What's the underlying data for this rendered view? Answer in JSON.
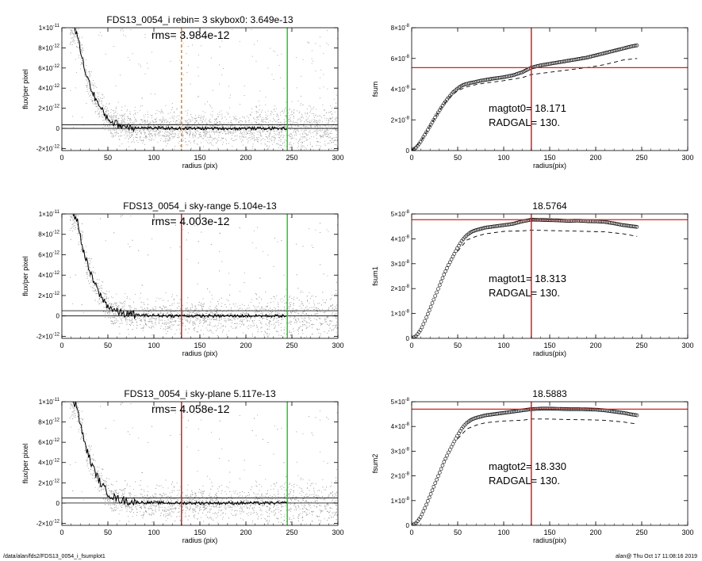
{
  "footer": {
    "path": "/data/alan/fds2/FDS13_0054_i_fsumplot1",
    "stamp": "alan@  Thu Oct 17 11:08:16 2019"
  },
  "colors": {
    "axis": "#000000",
    "scatter": "#9a9a9a",
    "profile": "#000000",
    "marker_red": "#d62020",
    "marker_green": "#22cc22",
    "marker_orange": "#e8821e"
  },
  "chart_data": [
    {
      "type": "scatter",
      "panel": "left-1",
      "title": "FDS13_0054_i rebin= 3     skybox0:  3.649e-13",
      "annotation": "rms= 3.984e-12",
      "xlabel": "radius (pix)",
      "ylabel": "flux/per pixel",
      "xlim": [
        0,
        300
      ],
      "ylim": [
        -2.2e-12,
        1e-11
      ],
      "xticks": [
        "0",
        "50",
        "100",
        "150",
        "200",
        "250",
        "300"
      ],
      "yticks": [
        {
          "v": -2e-12,
          "m": "-2×10",
          "e": "-12"
        },
        {
          "v": 0,
          "m": "0",
          "e": ""
        },
        {
          "v": 2e-12,
          "m": "2×10",
          "e": "-12"
        },
        {
          "v": 4e-12,
          "m": "4×10",
          "e": "-12"
        },
        {
          "v": 6e-12,
          "m": "6×10",
          "e": "-12"
        },
        {
          "v": 8e-12,
          "m": "8×10",
          "e": "-12"
        },
        {
          "v": 1e-11,
          "m": "1×10",
          "e": "-11"
        }
      ],
      "profile": {
        "r": [
          12,
          16,
          20,
          24,
          28,
          32,
          36,
          40,
          44,
          48,
          52,
          56,
          60,
          64,
          68,
          72,
          76,
          80,
          90,
          100,
          110,
          120,
          130,
          140,
          150,
          160,
          170,
          180,
          190,
          200,
          210,
          220,
          230,
          245
        ],
        "flux": [
          1e-11,
          9.6e-12,
          7.8e-12,
          6.2e-12,
          5e-12,
          3.9e-12,
          3.1e-12,
          2.3e-12,
          1.7e-12,
          1.2e-12,
          8.5e-13,
          6e-13,
          4.2e-13,
          3e-13,
          2.2e-13,
          1.6e-13,
          1.2e-13,
          1e-13,
          6e-14,
          4e-14,
          2e-14,
          1e-14,
          5e-15,
          0,
          -5e-15,
          5e-15,
          0,
          -5e-15,
          0,
          5e-15,
          0,
          -5e-15,
          0,
          0
        ]
      },
      "hlines": [
        0,
        3.649e-13
      ],
      "vlines": [
        {
          "x": 130,
          "color": "#e8821e",
          "style": "dashed"
        },
        {
          "x": 245,
          "color": "#22cc22",
          "style": "solid"
        }
      ]
    },
    {
      "type": "line",
      "panel": "right-1",
      "title": "",
      "annotation": [
        "magtot0=  18.171",
        "RADGAL=     130."
      ],
      "xlabel": "radius(pix)",
      "ylabel": "fsum",
      "xlim": [
        0,
        300
      ],
      "ylim": [
        0,
        8e-08
      ],
      "xticks": [
        "0",
        "50",
        "100",
        "150",
        "200",
        "250",
        "300"
      ],
      "yticks": [
        {
          "v": 0,
          "m": "0",
          "e": ""
        },
        {
          "v": 2e-08,
          "m": "2×10",
          "e": "-8"
        },
        {
          "v": 4e-08,
          "m": "4×10",
          "e": "-8"
        },
        {
          "v": 6e-08,
          "m": "6×10",
          "e": "-8"
        },
        {
          "v": 8e-08,
          "m": "8×10",
          "e": "-8"
        }
      ],
      "fsum": {
        "r": [
          0,
          5,
          10,
          15,
          20,
          25,
          30,
          35,
          40,
          45,
          50,
          55,
          60,
          65,
          70,
          75,
          80,
          90,
          100,
          110,
          120,
          130,
          140,
          150,
          160,
          170,
          180,
          190,
          200,
          210,
          220,
          230,
          240,
          245
        ],
        "value": [
          0,
          2e-09,
          6e-09,
          1.1e-08,
          1.6e-08,
          2.1e-08,
          2.6e-08,
          3.05e-08,
          3.45e-08,
          3.8e-08,
          4.05e-08,
          4.25e-08,
          4.35e-08,
          4.42e-08,
          4.48e-08,
          4.55e-08,
          4.6e-08,
          4.7e-08,
          4.78e-08,
          4.9e-08,
          5.1e-08,
          5.4e-08,
          5.55e-08,
          5.65e-08,
          5.75e-08,
          5.85e-08,
          5.95e-08,
          6.05e-08,
          6.2e-08,
          6.35e-08,
          6.5e-08,
          6.65e-08,
          6.8e-08,
          6.85e-08
        ]
      },
      "dashed": {
        "r": [
          0,
          10,
          20,
          30,
          40,
          50,
          60,
          70,
          80,
          100,
          120,
          130,
          150,
          170,
          190,
          210,
          230,
          245
        ],
        "value": [
          0,
          6e-09,
          1.6e-08,
          2.6e-08,
          3.4e-08,
          3.9e-08,
          4.15e-08,
          4.3e-08,
          4.4e-08,
          4.55e-08,
          4.75e-08,
          4.95e-08,
          5.1e-08,
          5.25e-08,
          5.4e-08,
          5.6e-08,
          5.9e-08,
          6e-08
        ]
      },
      "hline": 5.4e-08,
      "vline": 130
    },
    {
      "type": "scatter",
      "panel": "left-2",
      "title": "FDS13_0054_i sky-range  5.104e-13",
      "annotation": "rms= 4.003e-12",
      "xlabel": "radius (pix)",
      "ylabel": "flux/per pixel",
      "xlim": [
        0,
        300
      ],
      "ylim": [
        -2.2e-12,
        1e-11
      ],
      "xticks": [
        "0",
        "50",
        "100",
        "150",
        "200",
        "250",
        "300"
      ],
      "yticks": [
        {
          "v": -2e-12,
          "m": "-2×10",
          "e": "-12"
        },
        {
          "v": 0,
          "m": "0",
          "e": ""
        },
        {
          "v": 2e-12,
          "m": "2×10",
          "e": "-12"
        },
        {
          "v": 4e-12,
          "m": "4×10",
          "e": "-12"
        },
        {
          "v": 6e-12,
          "m": "6×10",
          "e": "-12"
        },
        {
          "v": 8e-12,
          "m": "8×10",
          "e": "-12"
        },
        {
          "v": 1e-11,
          "m": "1×10",
          "e": "-11"
        }
      ],
      "profile": {
        "r": [
          12,
          16,
          20,
          24,
          28,
          32,
          36,
          40,
          44,
          48,
          52,
          56,
          60,
          64,
          68,
          72,
          76,
          80,
          90,
          100,
          110,
          120,
          130,
          140,
          150,
          160,
          170,
          180,
          190,
          200,
          210,
          220,
          230,
          245
        ],
        "flux": [
          1e-11,
          9.6e-12,
          7.8e-12,
          6.2e-12,
          5e-12,
          3.9e-12,
          3.1e-12,
          2.3e-12,
          1.7e-12,
          1.2e-12,
          8.5e-13,
          6e-13,
          4.2e-13,
          3e-13,
          2.2e-13,
          1.6e-13,
          1.2e-13,
          1e-13,
          6e-14,
          4e-14,
          2e-14,
          1e-14,
          5e-15,
          0,
          -5e-15,
          5e-15,
          0,
          -5e-15,
          0,
          5e-15,
          0,
          -5e-15,
          0,
          0
        ]
      },
      "hlines": [
        0,
        5.104e-13
      ],
      "vlines": [
        {
          "x": 130,
          "color": "#d62020",
          "style": "solid"
        },
        {
          "x": 245,
          "color": "#22cc22",
          "style": "solid"
        }
      ]
    },
    {
      "type": "line",
      "panel": "right-2",
      "title": "18.5764",
      "annotation": [
        "magtot1=  18.313",
        "RADGAL=     130."
      ],
      "xlabel": "radius(pix)",
      "ylabel": "fsum1",
      "xlim": [
        0,
        300
      ],
      "ylim": [
        0,
        5e-08
      ],
      "xticks": [
        "0",
        "50",
        "100",
        "150",
        "200",
        "250",
        "300"
      ],
      "yticks": [
        {
          "v": 0,
          "m": "0",
          "e": ""
        },
        {
          "v": 1e-08,
          "m": "1×10",
          "e": "-8"
        },
        {
          "v": 2e-08,
          "m": "2×10",
          "e": "-8"
        },
        {
          "v": 3e-08,
          "m": "3×10",
          "e": "-8"
        },
        {
          "v": 4e-08,
          "m": "4×10",
          "e": "-8"
        },
        {
          "v": 5e-08,
          "m": "5×10",
          "e": "-8"
        }
      ],
      "fsum": {
        "r": [
          0,
          5,
          10,
          15,
          20,
          25,
          30,
          35,
          40,
          45,
          50,
          55,
          60,
          65,
          70,
          75,
          80,
          90,
          100,
          110,
          120,
          130,
          140,
          150,
          160,
          170,
          180,
          190,
          200,
          210,
          220,
          230,
          240,
          245
        ],
        "value": [
          0,
          1e-09,
          3.5e-09,
          7.5e-09,
          1.2e-08,
          1.65e-08,
          2.1e-08,
          2.55e-08,
          2.95e-08,
          3.3e-08,
          3.65e-08,
          3.95e-08,
          4.15e-08,
          4.28e-08,
          4.35e-08,
          4.4e-08,
          4.45e-08,
          4.5e-08,
          4.55e-08,
          4.6e-08,
          4.7e-08,
          4.77e-08,
          4.76e-08,
          4.75e-08,
          4.74e-08,
          4.72e-08,
          4.73e-08,
          4.71e-08,
          4.7e-08,
          4.68e-08,
          4.62e-08,
          4.55e-08,
          4.5e-08,
          4.48e-08
        ]
      },
      "dashed": {
        "r": [
          50,
          60,
          70,
          80,
          100,
          120,
          130,
          150,
          170,
          190,
          210,
          230,
          245
        ],
        "value": [
          3.5e-08,
          3.95e-08,
          4.1e-08,
          4.2e-08,
          4.3e-08,
          4.32e-08,
          4.35e-08,
          4.33e-08,
          4.32e-08,
          4.3e-08,
          4.28e-08,
          4.2e-08,
          4.1e-08
        ]
      },
      "hline": 4.77e-08,
      "vline": 130
    },
    {
      "type": "scatter",
      "panel": "left-3",
      "title": "FDS13_0054_i sky-plane  5.117e-13",
      "annotation": "rms= 4.058e-12",
      "xlabel": "radius (pix)",
      "ylabel": "flux/per pixel",
      "xlim": [
        0,
        300
      ],
      "ylim": [
        -2.2e-12,
        1e-11
      ],
      "xticks": [
        "0",
        "50",
        "100",
        "150",
        "200",
        "250",
        "300"
      ],
      "yticks": [
        {
          "v": -2e-12,
          "m": "-2×10",
          "e": "-12"
        },
        {
          "v": 0,
          "m": "0",
          "e": ""
        },
        {
          "v": 2e-12,
          "m": "2×10",
          "e": "-12"
        },
        {
          "v": 4e-12,
          "m": "4×10",
          "e": "-12"
        },
        {
          "v": 6e-12,
          "m": "6×10",
          "e": "-12"
        },
        {
          "v": 8e-12,
          "m": "8×10",
          "e": "-12"
        },
        {
          "v": 1e-11,
          "m": "1×10",
          "e": "-11"
        }
      ],
      "profile": {
        "r": [
          12,
          16,
          20,
          24,
          28,
          32,
          36,
          40,
          44,
          48,
          52,
          56,
          60,
          64,
          68,
          72,
          76,
          80,
          90,
          100,
          110,
          120,
          130,
          140,
          150,
          160,
          170,
          180,
          190,
          200,
          210,
          220,
          230,
          245
        ],
        "flux": [
          1e-11,
          9.6e-12,
          7.8e-12,
          6.2e-12,
          5e-12,
          3.9e-12,
          3.1e-12,
          2.3e-12,
          1.7e-12,
          1.2e-12,
          8.5e-13,
          6e-13,
          4.2e-13,
          3e-13,
          2.2e-13,
          1.6e-13,
          1.2e-13,
          1e-13,
          6e-14,
          4e-14,
          2e-14,
          1e-14,
          5e-15,
          0,
          -5e-15,
          5e-15,
          0,
          -5e-15,
          0,
          5e-15,
          0,
          -5e-15,
          0,
          0
        ]
      },
      "hlines": [
        0,
        5.117e-13
      ],
      "vlines": [
        {
          "x": 130,
          "color": "#d62020",
          "style": "solid"
        },
        {
          "x": 245,
          "color": "#22cc22",
          "style": "solid"
        }
      ]
    },
    {
      "type": "line",
      "panel": "right-3",
      "title": "18.5883",
      "annotation": [
        "magtot2=  18.330",
        "RADGAL=     130."
      ],
      "xlabel": "radius(pix)",
      "ylabel": "fsum2",
      "xlim": [
        0,
        300
      ],
      "ylim": [
        0,
        5e-08
      ],
      "xticks": [
        "0",
        "50",
        "100",
        "150",
        "200",
        "250",
        "300"
      ],
      "yticks": [
        {
          "v": 0,
          "m": "0",
          "e": ""
        },
        {
          "v": 1e-08,
          "m": "1×10",
          "e": "-8"
        },
        {
          "v": 2e-08,
          "m": "2×10",
          "e": "-8"
        },
        {
          "v": 3e-08,
          "m": "3×10",
          "e": "-8"
        },
        {
          "v": 4e-08,
          "m": "4×10",
          "e": "-8"
        },
        {
          "v": 5e-08,
          "m": "5×10",
          "e": "-8"
        }
      ],
      "fsum": {
        "r": [
          0,
          5,
          10,
          15,
          20,
          25,
          30,
          35,
          40,
          45,
          50,
          55,
          60,
          65,
          70,
          75,
          80,
          90,
          100,
          110,
          120,
          130,
          140,
          150,
          160,
          170,
          180,
          190,
          200,
          210,
          220,
          230,
          240,
          245
        ],
        "value": [
          0,
          1e-09,
          3.5e-09,
          7.5e-09,
          1.2e-08,
          1.65e-08,
          2.1e-08,
          2.55e-08,
          2.95e-08,
          3.3e-08,
          3.65e-08,
          3.95e-08,
          4.15e-08,
          4.28e-08,
          4.35e-08,
          4.4e-08,
          4.45e-08,
          4.5e-08,
          4.55e-08,
          4.6e-08,
          4.65e-08,
          4.7e-08,
          4.72e-08,
          4.72e-08,
          4.71e-08,
          4.7e-08,
          4.7e-08,
          4.69e-08,
          4.68e-08,
          4.65e-08,
          4.6e-08,
          4.55e-08,
          4.48e-08,
          4.45e-08
        ]
      },
      "dashed": {
        "r": [
          50,
          60,
          70,
          80,
          100,
          120,
          130,
          150,
          170,
          190,
          210,
          230,
          245
        ],
        "value": [
          3.5e-08,
          3.9e-08,
          4.05e-08,
          4.15e-08,
          4.22e-08,
          4.25e-08,
          4.3e-08,
          4.3e-08,
          4.28e-08,
          4.27e-08,
          4.25e-08,
          4.18e-08,
          4.1e-08
        ]
      },
      "hline": 4.7e-08,
      "vline": 130
    }
  ]
}
